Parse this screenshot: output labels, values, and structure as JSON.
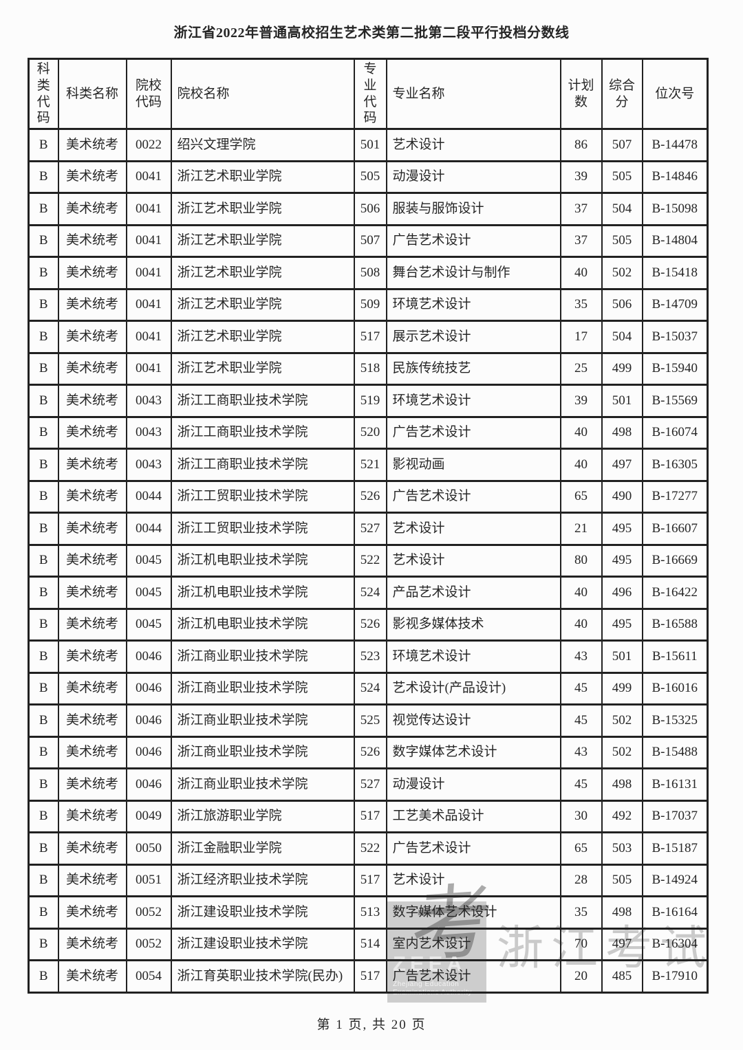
{
  "page": {
    "title": "浙江省2022年普通高校招生艺术类第二批第二段平行投档分数线",
    "footer": "第 1 页, 共 20 页"
  },
  "watermark": {
    "logo_char": "考",
    "logo_acronym": "ZEEA",
    "org_name_line1": "Zhejiang Education",
    "org_name_line2": "Examinations Authority",
    "side_text": "浙江考试"
  },
  "colors": {
    "border": "#212121",
    "text": "#262626",
    "background": "#fcfcfc",
    "watermark_gray": "rgba(128,128,128,0.40)"
  },
  "table": {
    "headers": [
      "科类代码",
      "科类名称",
      "院校代码",
      "院校名称",
      "专业代码",
      "专业名称",
      "计划数",
      "综合分",
      "位次号"
    ],
    "rows": [
      [
        "B",
        "美术统考",
        "0022",
        "绍兴文理学院",
        "501",
        "艺术设计",
        "86",
        "507",
        "B-14478"
      ],
      [
        "B",
        "美术统考",
        "0041",
        "浙江艺术职业学院",
        "505",
        "动漫设计",
        "39",
        "505",
        "B-14846"
      ],
      [
        "B",
        "美术统考",
        "0041",
        "浙江艺术职业学院",
        "506",
        "服装与服饰设计",
        "37",
        "504",
        "B-15098"
      ],
      [
        "B",
        "美术统考",
        "0041",
        "浙江艺术职业学院",
        "507",
        "广告艺术设计",
        "37",
        "505",
        "B-14804"
      ],
      [
        "B",
        "美术统考",
        "0041",
        "浙江艺术职业学院",
        "508",
        "舞台艺术设计与制作",
        "40",
        "502",
        "B-15418"
      ],
      [
        "B",
        "美术统考",
        "0041",
        "浙江艺术职业学院",
        "509",
        "环境艺术设计",
        "35",
        "506",
        "B-14709"
      ],
      [
        "B",
        "美术统考",
        "0041",
        "浙江艺术职业学院",
        "517",
        "展示艺术设计",
        "17",
        "504",
        "B-15037"
      ],
      [
        "B",
        "美术统考",
        "0041",
        "浙江艺术职业学院",
        "518",
        "民族传统技艺",
        "25",
        "499",
        "B-15940"
      ],
      [
        "B",
        "美术统考",
        "0043",
        "浙江工商职业技术学院",
        "519",
        "环境艺术设计",
        "39",
        "501",
        "B-15569"
      ],
      [
        "B",
        "美术统考",
        "0043",
        "浙江工商职业技术学院",
        "520",
        "广告艺术设计",
        "40",
        "498",
        "B-16074"
      ],
      [
        "B",
        "美术统考",
        "0043",
        "浙江工商职业技术学院",
        "521",
        "影视动画",
        "40",
        "497",
        "B-16305"
      ],
      [
        "B",
        "美术统考",
        "0044",
        "浙江工贸职业技术学院",
        "526",
        "广告艺术设计",
        "65",
        "490",
        "B-17277"
      ],
      [
        "B",
        "美术统考",
        "0044",
        "浙江工贸职业技术学院",
        "527",
        "艺术设计",
        "21",
        "495",
        "B-16607"
      ],
      [
        "B",
        "美术统考",
        "0045",
        "浙江机电职业技术学院",
        "522",
        "艺术设计",
        "80",
        "495",
        "B-16669"
      ],
      [
        "B",
        "美术统考",
        "0045",
        "浙江机电职业技术学院",
        "524",
        "产品艺术设计",
        "40",
        "496",
        "B-16422"
      ],
      [
        "B",
        "美术统考",
        "0045",
        "浙江机电职业技术学院",
        "526",
        "影视多媒体技术",
        "40",
        "495",
        "B-16588"
      ],
      [
        "B",
        "美术统考",
        "0046",
        "浙江商业职业技术学院",
        "523",
        "环境艺术设计",
        "43",
        "501",
        "B-15611"
      ],
      [
        "B",
        "美术统考",
        "0046",
        "浙江商业职业技术学院",
        "524",
        "艺术设计(产品设计)",
        "45",
        "499",
        "B-16016"
      ],
      [
        "B",
        "美术统考",
        "0046",
        "浙江商业职业技术学院",
        "525",
        "视觉传达设计",
        "45",
        "502",
        "B-15325"
      ],
      [
        "B",
        "美术统考",
        "0046",
        "浙江商业职业技术学院",
        "526",
        "数字媒体艺术设计",
        "43",
        "502",
        "B-15488"
      ],
      [
        "B",
        "美术统考",
        "0046",
        "浙江商业职业技术学院",
        "527",
        "动漫设计",
        "45",
        "498",
        "B-16131"
      ],
      [
        "B",
        "美术统考",
        "0049",
        "浙江旅游职业学院",
        "517",
        "工艺美术品设计",
        "30",
        "492",
        "B-17037"
      ],
      [
        "B",
        "美术统考",
        "0050",
        "浙江金融职业学院",
        "522",
        "广告艺术设计",
        "65",
        "503",
        "B-15187"
      ],
      [
        "B",
        "美术统考",
        "0051",
        "浙江经济职业技术学院",
        "517",
        "艺术设计",
        "28",
        "505",
        "B-14924"
      ],
      [
        "B",
        "美术统考",
        "0052",
        "浙江建设职业技术学院",
        "513",
        "数字媒体艺术设计",
        "35",
        "498",
        "B-16164"
      ],
      [
        "B",
        "美术统考",
        "0052",
        "浙江建设职业技术学院",
        "514",
        "室内艺术设计",
        "70",
        "497",
        "B-16304"
      ],
      [
        "B",
        "美术统考",
        "0054",
        "浙江育英职业技术学院(民办)",
        "517",
        "广告艺术设计",
        "20",
        "485",
        "B-17910"
      ]
    ]
  }
}
